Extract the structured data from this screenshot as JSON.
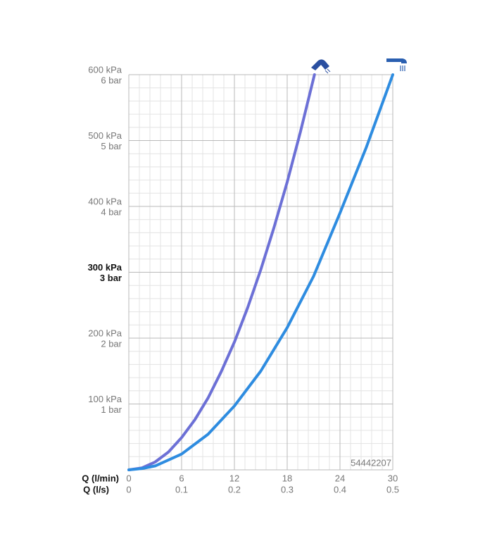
{
  "chart_data": {
    "type": "line",
    "x_label": "Q (l/min)",
    "x2_label": "Q (l/s)",
    "xlim": [
      0,
      30
    ],
    "xticks": [
      0,
      6,
      12,
      18,
      24,
      30
    ],
    "x2lim": [
      0,
      0.5
    ],
    "x2ticks": [
      0,
      0.1,
      0.2,
      0.3,
      0.4,
      0.5
    ],
    "ylim": [
      0,
      600
    ],
    "yticks": [
      {
        "value": 100,
        "label": "100 kPa"
      },
      {
        "value": 200,
        "label": "200 kPa"
      },
      {
        "value": 300,
        "label": "300 kPa"
      },
      {
        "value": 400,
        "label": "400 kPa"
      },
      {
        "value": 500,
        "label": "500 kPa"
      },
      {
        "value": 600,
        "label": "600 kPa"
      }
    ],
    "y2lim": [
      0,
      6
    ],
    "y2ticks": [
      {
        "value": 1,
        "label": "1 bar"
      },
      {
        "value": 2,
        "label": "2 bar"
      },
      {
        "value": 3,
        "label": "3 bar"
      },
      {
        "value": 4,
        "label": "4 bar"
      },
      {
        "value": 5,
        "label": "5 bar"
      },
      {
        "value": 6,
        "label": "6 bar"
      }
    ],
    "emphasized_ytick": 300,
    "grid": true,
    "annotation": "54442207",
    "series": [
      {
        "color": "#6c70d6",
        "x": [
          0,
          1.5,
          3,
          4.5,
          6,
          7.5,
          9,
          10.5,
          12,
          13.5,
          15,
          16.5,
          18,
          19.5,
          21.1
        ],
        "values": [
          0,
          3,
          12,
          27,
          49,
          76,
          109,
          149,
          194,
          246,
          304,
          368,
          437,
          513,
          600
        ]
      },
      {
        "color": "#2e8ce0",
        "x": [
          0,
          1.5,
          3,
          6,
          9,
          12,
          15,
          18,
          21,
          24,
          27,
          30
        ],
        "values": [
          0,
          2,
          6,
          24,
          54,
          97,
          150,
          216,
          294,
          390,
          490,
          600
        ]
      }
    ]
  }
}
